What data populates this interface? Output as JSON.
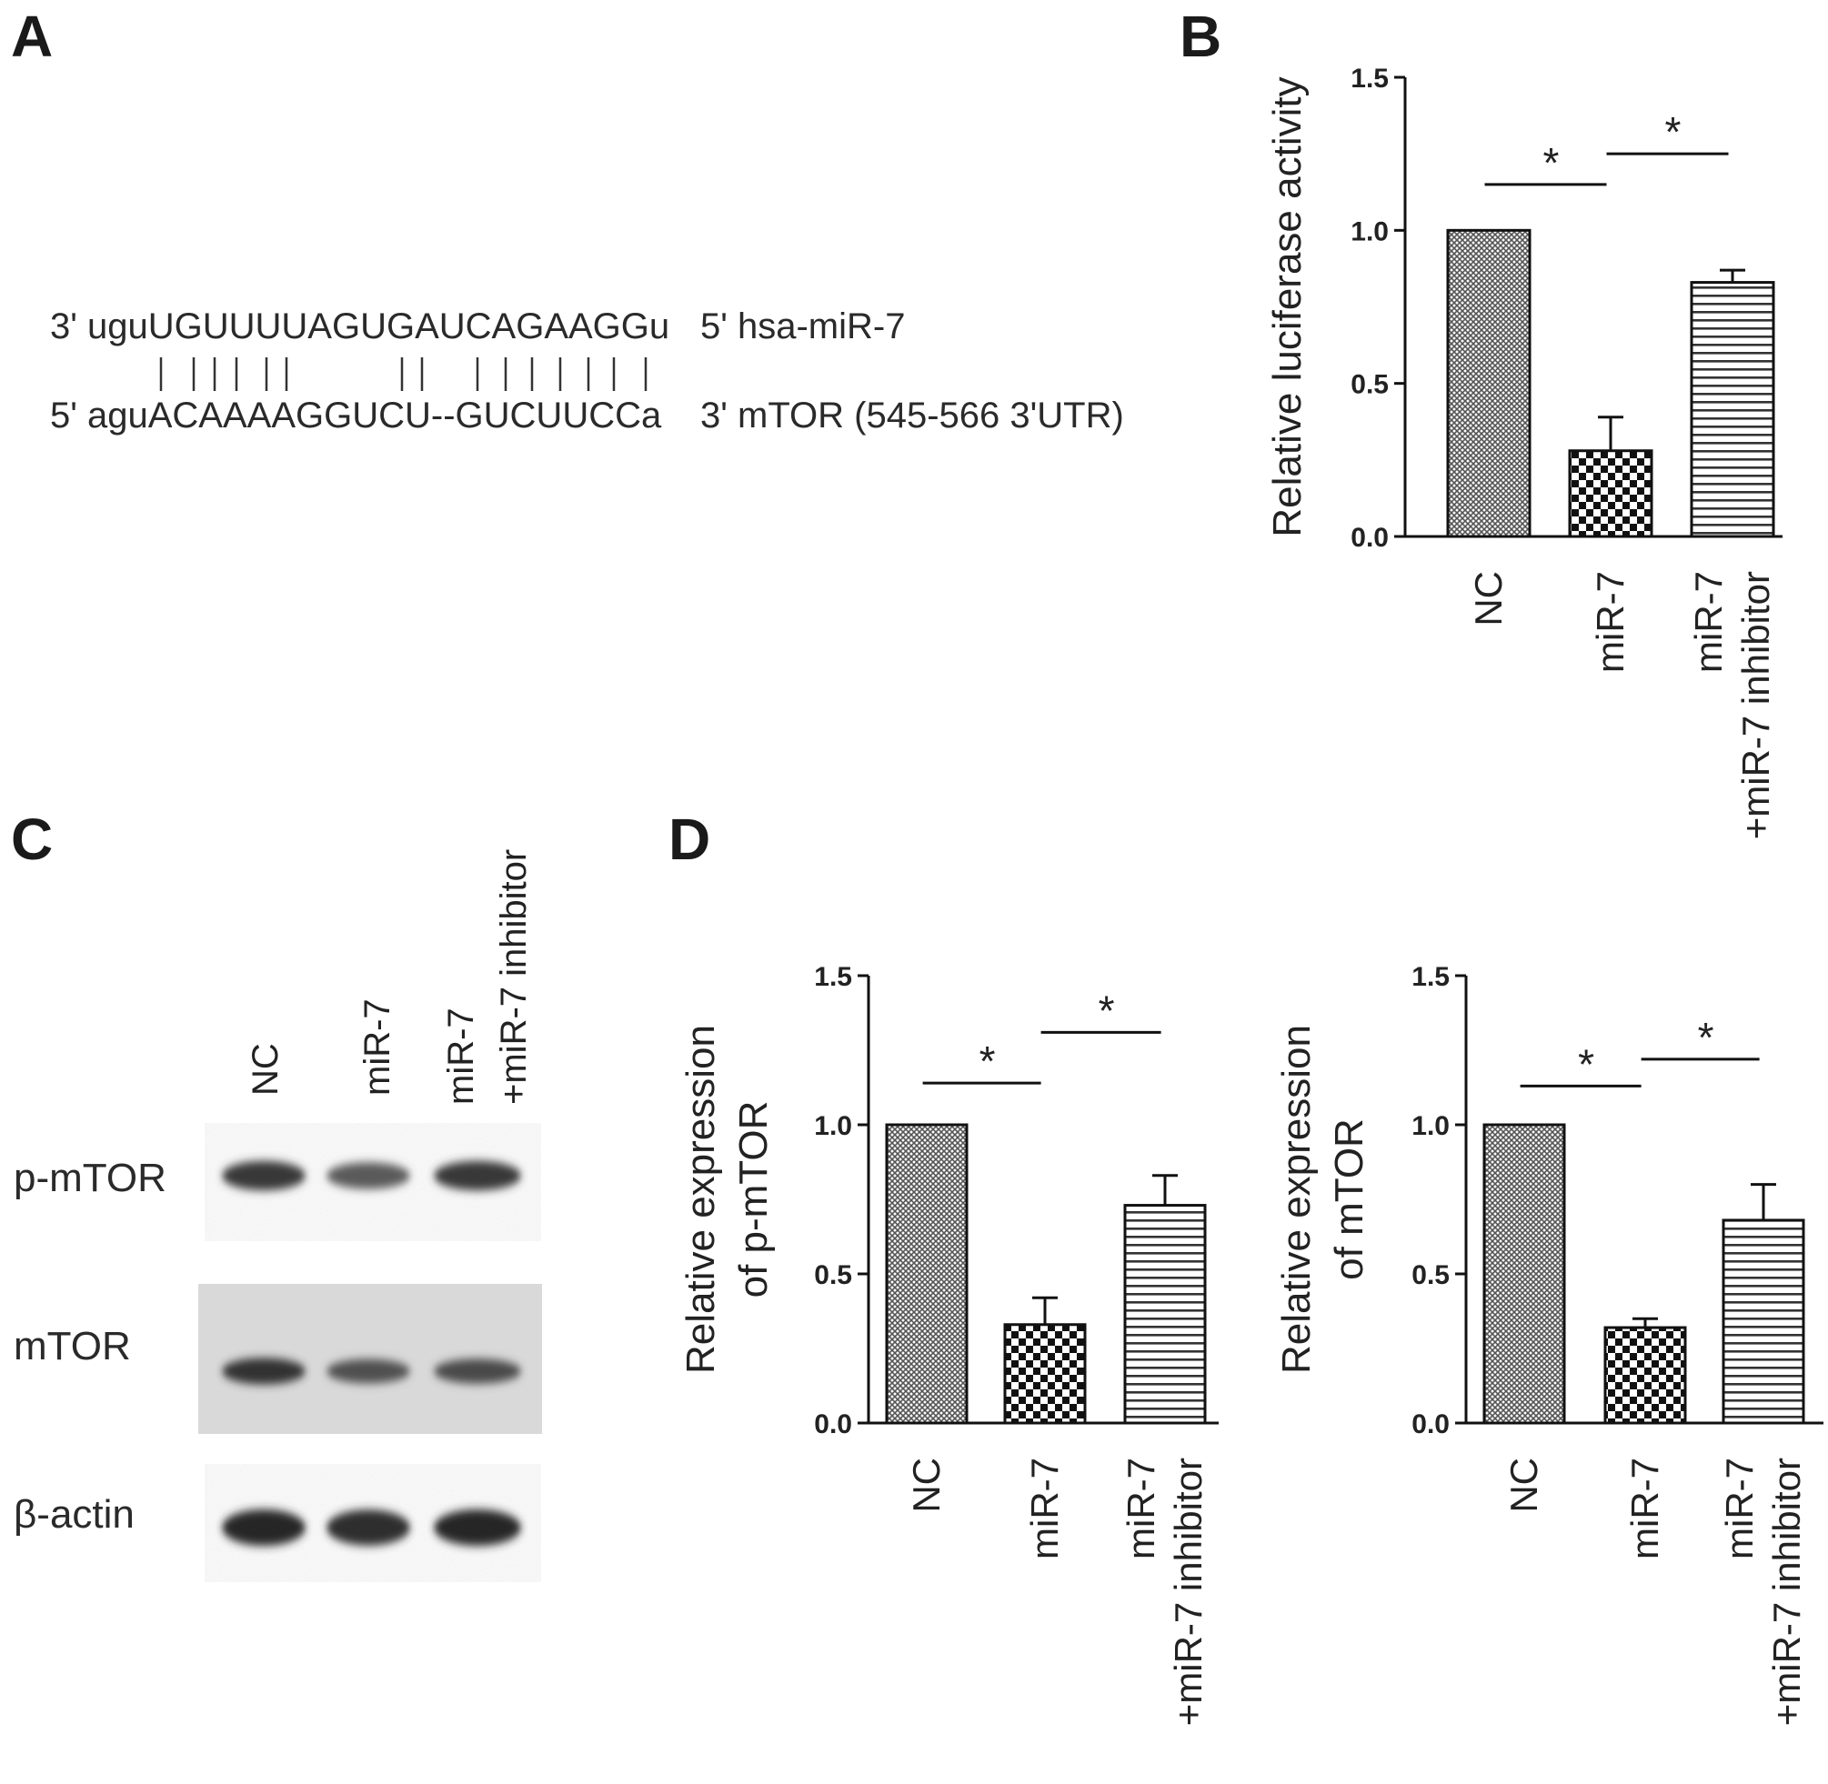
{
  "panels": {
    "A": {
      "letter": "A",
      "mirna_line": "3' uguUGUUUUAGUGAUCAGAAGGu",
      "mirna_label": "5' hsa-miR-7",
      "pairing": "| | | | | | |           | |    | | | | | | |",
      "target_line": "5' aguACAAAAGGUCU--GUCUUCCa",
      "target_label": "3' mTOR (545-566  3'UTR)"
    },
    "B": {
      "letter": "B"
    },
    "C": {
      "letter": "C",
      "lanes": [
        "NC",
        "miR-7",
        "miR-7",
        "+miR-7 inhibitor"
      ],
      "rows": [
        "p-mTOR",
        "mTOR",
        "β-actin"
      ],
      "band_intensity": {
        "p-mTOR": [
          0.85,
          0.55,
          0.85
        ],
        "mTOR": [
          0.9,
          0.65,
          0.7
        ],
        "β-actin": [
          1.0,
          0.95,
          1.0
        ]
      }
    },
    "D": {
      "letter": "D"
    }
  },
  "chart_data": [
    {
      "type": "bar",
      "panel": "B",
      "title": "",
      "ylabel": "Relative luciferase activity",
      "categories": [
        "NC",
        "miR-7",
        "miR-7\n+miR-7 inhibitor"
      ],
      "category_lines": [
        [
          "NC"
        ],
        [
          "miR-7"
        ],
        [
          "miR-7",
          "+miR-7 inhibitor"
        ]
      ],
      "values": [
        1.0,
        0.28,
        0.83
      ],
      "errors": [
        0.0,
        0.11,
        0.04
      ],
      "patterns": [
        "crosshatch",
        "checker",
        "horizontal"
      ],
      "ylim": [
        0,
        1.5
      ],
      "yticks": [
        "0.0",
        "0.5",
        "1.0",
        "1.5"
      ],
      "significance": [
        {
          "from": 0,
          "to": 1,
          "label": "*",
          "y": 1.15
        },
        {
          "from": 1,
          "to": 2,
          "label": "*",
          "y": 1.25
        }
      ]
    },
    {
      "type": "bar",
      "panel": "D-left",
      "title": "",
      "ylabel_lines": [
        "Relative expression",
        "of p-mTOR"
      ],
      "categories": [
        "NC",
        "miR-7",
        "miR-7\n+miR-7 inhibitor"
      ],
      "category_lines": [
        [
          "NC"
        ],
        [
          "miR-7"
        ],
        [
          "miR-7",
          "+miR-7 inhibitor"
        ]
      ],
      "values": [
        1.0,
        0.33,
        0.73
      ],
      "errors": [
        0.0,
        0.09,
        0.1
      ],
      "patterns": [
        "crosshatch",
        "checker",
        "horizontal"
      ],
      "ylim": [
        0,
        1.5
      ],
      "yticks": [
        "0.0",
        "0.5",
        "1.0",
        "1.5"
      ],
      "significance": [
        {
          "from": 0,
          "to": 1,
          "label": "*",
          "y": 1.14
        },
        {
          "from": 1,
          "to": 2,
          "label": "*",
          "y": 1.31
        }
      ]
    },
    {
      "type": "bar",
      "panel": "D-right",
      "title": "",
      "ylabel_lines": [
        "Relative expression",
        "of mTOR"
      ],
      "categories": [
        "NC",
        "miR-7",
        "miR-7\n+miR-7 inhibitor"
      ],
      "category_lines": [
        [
          "NC"
        ],
        [
          "miR-7"
        ],
        [
          "miR-7",
          "+miR-7 inhibitor"
        ]
      ],
      "values": [
        1.0,
        0.32,
        0.68
      ],
      "errors": [
        0.0,
        0.03,
        0.12
      ],
      "patterns": [
        "crosshatch",
        "checker",
        "horizontal"
      ],
      "ylim": [
        0,
        1.5
      ],
      "yticks": [
        "0.0",
        "0.5",
        "1.0",
        "1.5"
      ],
      "significance": [
        {
          "from": 0,
          "to": 1,
          "label": "*",
          "y": 1.13
        },
        {
          "from": 1,
          "to": 2,
          "label": "*",
          "y": 1.22
        }
      ]
    }
  ]
}
